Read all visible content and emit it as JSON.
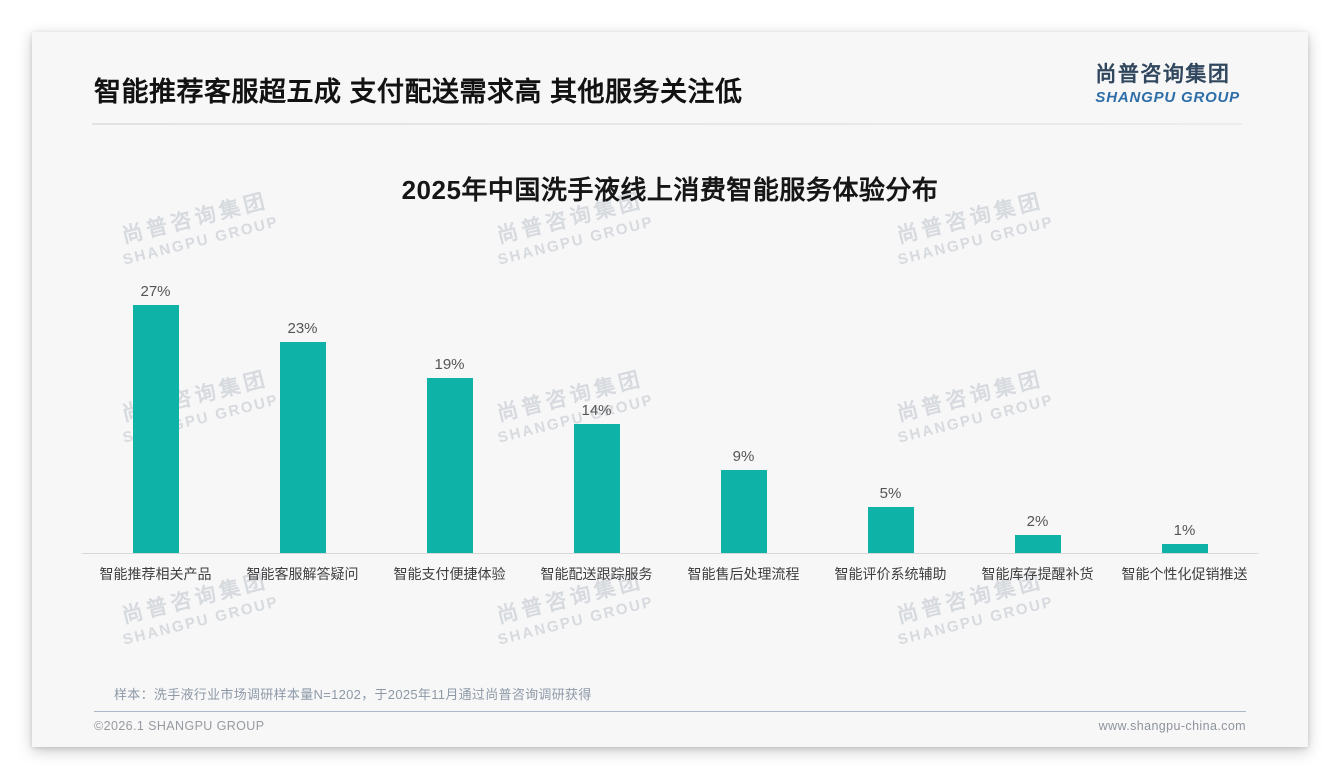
{
  "header": {
    "title": "智能推荐客服超五成 支付配送需求高 其他服务关注低",
    "logo_cn": "尚普咨询集团",
    "logo_en": "SHANGPU GROUP"
  },
  "watermark": {
    "cn": "尚普咨询集团",
    "en": "SHANGPU GROUP"
  },
  "chart_data": {
    "type": "bar",
    "title": "2025年中国洗手液线上消费智能服务体验分布",
    "categories": [
      "智能推荐相关产品",
      "智能客服解答疑问",
      "智能支付便捷体验",
      "智能配送跟踪服务",
      "智能售后处理流程",
      "智能评价系统辅助",
      "智能库存提醒补货",
      "智能个性化促销推送"
    ],
    "values": [
      27,
      23,
      19,
      14,
      9,
      5,
      2,
      1
    ],
    "value_labels": [
      "27%",
      "23%",
      "19%",
      "14%",
      "9%",
      "5%",
      "2%",
      "1%"
    ],
    "bar_color": "#0FB2A6",
    "xlabel": "",
    "ylabel": "",
    "ylim": [
      0,
      30
    ],
    "grid": false,
    "legend": "none"
  },
  "note": "样本：洗手液行业市场调研样本量N=1202，于2025年11月通过尚普咨询调研获得",
  "footer": {
    "copyright": "©2026.1 SHANGPU GROUP",
    "website": "www.shangpu-china.com"
  }
}
